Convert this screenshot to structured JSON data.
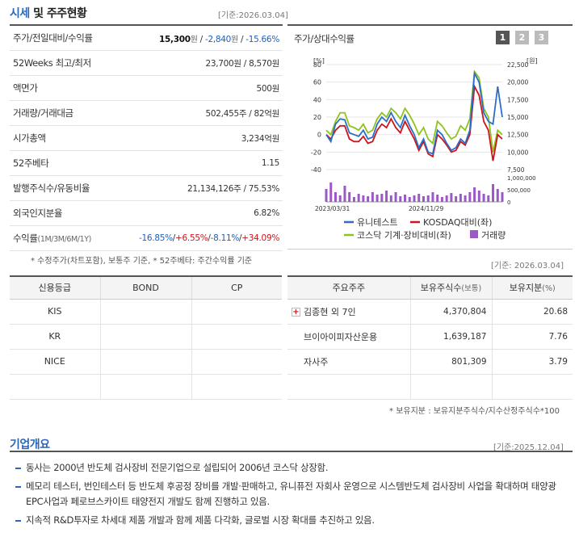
{
  "quote_section": {
    "title_main": "시세",
    "title_rest": " 및 주주현황",
    "base_date": "[기준:2026.03.04]",
    "rows": [
      {
        "label": "주가/전일대비/수익률",
        "price": "15,300",
        "price_unit": "원",
        "sep1": " / ",
        "change": "-2,840",
        "change_unit": "원",
        "sep2": " / ",
        "rate": "-15.66%"
      },
      {
        "label": "52Weeks 최고/최저",
        "value": "23,700원 / 8,570원"
      },
      {
        "label": "액면가",
        "value": "500원"
      },
      {
        "label": "거래량/거래대금",
        "value": "502,455주 / 82억원"
      },
      {
        "label": "시가총액",
        "value": "3,234억원"
      },
      {
        "label": "52주베타",
        "value": "1.15"
      },
      {
        "label": "발행주식수/유동비율",
        "value": "21,134,126주 / 75.53%"
      },
      {
        "label": "외국인지분율",
        "value": "6.82%"
      },
      {
        "label": "수익률",
        "label_sub": "(1M/3M/6M/1Y)",
        "r1": "-16.85%",
        "r2": "+6.55%",
        "r3": "-8.11%",
        "r4": "+34.09%",
        "sep": "/"
      }
    ],
    "note": "* 수정주가(차트포함), 보통주 기준, * 52주베타: 주간수익률 기준"
  },
  "chart_panel": {
    "title": "주가/상대수익률",
    "buttons": [
      "1",
      "2",
      "3"
    ],
    "active_button": "1"
  },
  "chart_data": {
    "type": "line",
    "left_axis_label": "[%]",
    "right_axis_label": "[원]",
    "left_ticks": [
      "80",
      "60",
      "40",
      "20",
      "0",
      "-20",
      "-40"
    ],
    "right_ticks": [
      "22,500",
      "20,000",
      "17,500",
      "15,000",
      "12,500",
      "10,000",
      "7,500"
    ],
    "volume_ticks": [
      "1,000,000",
      "500,000",
      "0"
    ],
    "x_tick_labels": [
      "2023/03/31",
      "2024/11/29"
    ],
    "ylim": [
      -40,
      80
    ],
    "series": [
      {
        "name": "유니테스트",
        "color": "#2a6fc9",
        "values": [
          0,
          -8,
          12,
          18,
          17,
          2,
          0,
          -2,
          5,
          -5,
          -3,
          12,
          20,
          15,
          25,
          15,
          8,
          22,
          10,
          0,
          -15,
          -5,
          -20,
          -22,
          5,
          0,
          -10,
          -18,
          -15,
          -5,
          -10,
          5,
          70,
          60,
          25,
          15,
          12,
          55,
          20
        ]
      },
      {
        "name": "KOSDAQ대비(좌)",
        "color": "#d0121b",
        "values": [
          0,
          -5,
          5,
          10,
          10,
          -5,
          -8,
          -8,
          -2,
          -10,
          -8,
          5,
          12,
          8,
          18,
          8,
          2,
          15,
          5,
          -5,
          -18,
          -8,
          -22,
          -25,
          0,
          -5,
          -12,
          -20,
          -18,
          -8,
          -12,
          0,
          55,
          45,
          15,
          5,
          -30,
          0,
          -5
        ]
      },
      {
        "name": "코스닥 기계·장비대비(좌)",
        "color": "#8ec31d",
        "values": [
          5,
          0,
          15,
          25,
          25,
          10,
          8,
          5,
          12,
          2,
          5,
          18,
          25,
          20,
          30,
          25,
          18,
          30,
          22,
          12,
          0,
          8,
          -5,
          -10,
          15,
          10,
          2,
          -5,
          -2,
          10,
          5,
          18,
          72,
          65,
          30,
          20,
          -20,
          5,
          0
        ]
      },
      {
        "name": "거래량",
        "color": "#9b59c6",
        "values": [
          80,
          120,
          60,
          40,
          100,
          60,
          30,
          50,
          40,
          35,
          60,
          45,
          50,
          70,
          40,
          60,
          35,
          45,
          30,
          40,
          50,
          35,
          40,
          60,
          45,
          30,
          40,
          55,
          35,
          50,
          40,
          60,
          90,
          70,
          50,
          40,
          110,
          80,
          60
        ]
      }
    ],
    "volume_max": 1000000
  },
  "credit_section": {
    "headers": [
      "신용등급",
      "BOND",
      "CP"
    ],
    "rows": [
      [
        "KIS",
        "",
        ""
      ],
      [
        "KR",
        "",
        ""
      ],
      [
        "NICE",
        "",
        ""
      ],
      [
        "",
        "",
        ""
      ]
    ]
  },
  "holders_section": {
    "base_date": "[기준: 2026.03.04]",
    "headers": [
      "주요주주",
      "보유주식수",
      "(보통)",
      "보유지분",
      "(%)"
    ],
    "rows": [
      {
        "name": "김종현 외 7인",
        "shares": "4,370,804",
        "pct": "20.68",
        "expandable": true
      },
      {
        "name": "브이아이피자산운용",
        "shares": "1,639,187",
        "pct": "7.76",
        "expandable": false
      },
      {
        "name": "자사주",
        "shares": "801,309",
        "pct": "3.79",
        "expandable": false
      },
      {
        "name": "",
        "shares": "",
        "pct": "",
        "expandable": false
      }
    ],
    "note": "* 보유지분 : 보유지분주식수/지수산정주식수*100"
  },
  "overview_section": {
    "title": "기업개요",
    "base_date": "[기준:2025.12.04]",
    "items": [
      "동사는 2000년 반도체 검사장비 전문기업으로 설립되어 2006년 코스닥 상장함.",
      "메모리 테스터, 번인테스터 등 반도체 후공정 장비를 개발·판매하고, 유니퓨전 자회사 운영으로 시스템반도체 검사장비 사업을 확대하며 태양광 EPC사업과 페로브스카이트 태양전지 개발도 함께 진행하고 있음.",
      "지속적 R&D투자로 차세대 제품 개발과 함께 제품 다각화, 글로벌 시장 확대를 추진하고 있음."
    ]
  }
}
